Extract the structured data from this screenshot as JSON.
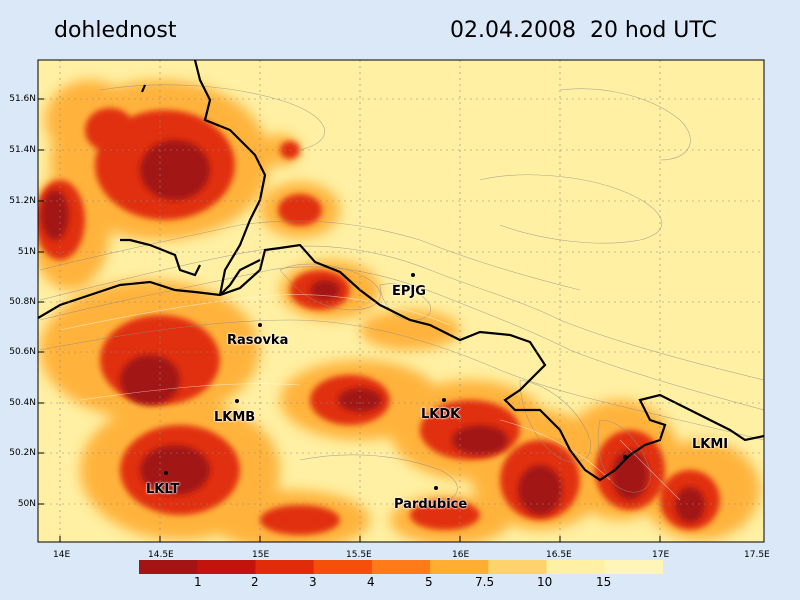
{
  "header": {
    "variable": "dohlednost",
    "datetime": "02.04.2008  20 hod UTC"
  },
  "lat_labels": [
    "51.6N",
    "51.4N",
    "51.2N",
    "51N",
    "50.8N",
    "50.6N",
    "50.4N",
    "50.2N",
    "50N"
  ],
  "lon_labels": [
    "14E",
    "14.5E",
    "15E",
    "15.5E",
    "16E",
    "16.5E",
    "17E",
    "17.5E"
  ],
  "places": [
    {
      "name": "EPJG"
    },
    {
      "name": "Rasovka"
    },
    {
      "name": "LKMB"
    },
    {
      "name": "LKDK"
    },
    {
      "name": "LKMI"
    },
    {
      "name": "LKLT"
    },
    {
      "name": "Pardubice"
    }
  ],
  "legend": {
    "labels": [
      "1",
      "2",
      "3",
      "4",
      "5",
      "7.5",
      "10",
      "15"
    ],
    "colors": [
      "#a31414",
      "#c0140c",
      "#e02c08",
      "#f5500a",
      "#ff7a1a",
      "#ffad33",
      "#ffd36b",
      "#fff0a3",
      "#fff5b8"
    ]
  }
}
